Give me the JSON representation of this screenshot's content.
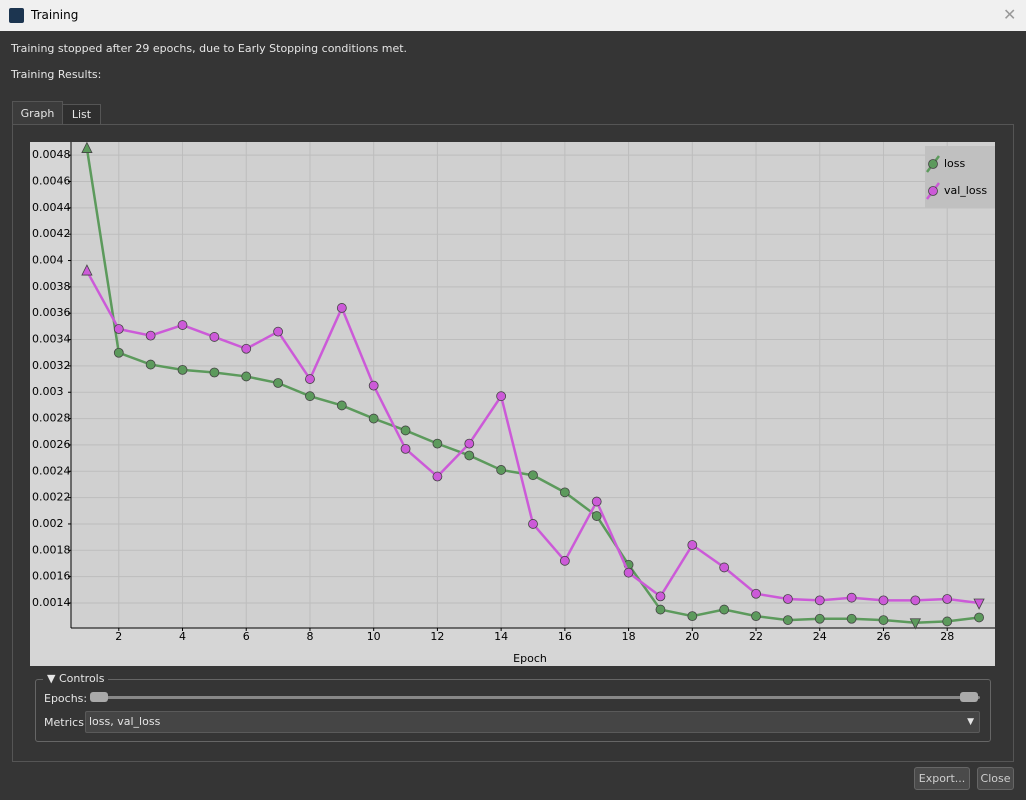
{
  "window": {
    "title": "Training",
    "message": "Training stopped after 29 epochs, due to Early Stopping conditions met.",
    "results_label": "Training Results:",
    "tabs": [
      "Graph",
      "List"
    ],
    "controls": {
      "title": "Controls",
      "epochs_label": "Epochs:",
      "metrics_label": "Metrics",
      "metrics_value": "loss, val_loss"
    },
    "buttons": [
      "Export...",
      "Close"
    ]
  },
  "chart_data": {
    "type": "line",
    "x_label": "Epoch",
    "x": [
      1,
      2,
      3,
      4,
      5,
      6,
      7,
      8,
      9,
      10,
      11,
      12,
      13,
      14,
      15,
      16,
      17,
      18,
      19,
      20,
      21,
      22,
      23,
      24,
      25,
      26,
      27,
      28,
      29
    ],
    "series": [
      {
        "name": "loss",
        "color": "#5c9a5c",
        "values": [
          0.00485,
          0.0033,
          0.00321,
          0.00317,
          0.00315,
          0.00312,
          0.00307,
          0.00297,
          0.0029,
          0.0028,
          0.00271,
          0.00261,
          0.00252,
          0.00241,
          0.00237,
          0.00224,
          0.00206,
          0.00169,
          0.00135,
          0.0013,
          0.00135,
          0.0013,
          0.00127,
          0.00128,
          0.00128,
          0.00127,
          0.00125,
          0.00126,
          0.00129
        ]
      },
      {
        "name": "val_loss",
        "color": "#cc5ad8",
        "values": [
          0.00392,
          0.00348,
          0.00343,
          0.00351,
          0.00342,
          0.00333,
          0.00346,
          0.0031,
          0.00364,
          0.00305,
          0.00257,
          0.00236,
          0.00261,
          0.00297,
          0.002,
          0.00172,
          0.00217,
          0.00163,
          0.00145,
          0.00184,
          0.00167,
          0.00147,
          0.00143,
          0.00142,
          0.00144,
          0.00142,
          0.00142,
          0.00143,
          0.0014
        ]
      }
    ],
    "xlim": [
      0.5,
      29.5
    ],
    "ylim": [
      0.00121,
      0.0049
    ],
    "xticks": [
      2,
      4,
      6,
      8,
      10,
      12,
      14,
      16,
      18,
      20,
      22,
      24,
      26,
      28
    ],
    "yticks": [
      0.0014,
      0.0016,
      0.0018,
      0.002,
      0.0022,
      0.0024,
      0.0026,
      0.0028,
      0.003,
      0.0032,
      0.0034,
      0.0036,
      0.0038,
      0.004,
      0.0042,
      0.0044,
      0.0046,
      0.0048
    ],
    "grid": true,
    "legend": "top-right"
  }
}
